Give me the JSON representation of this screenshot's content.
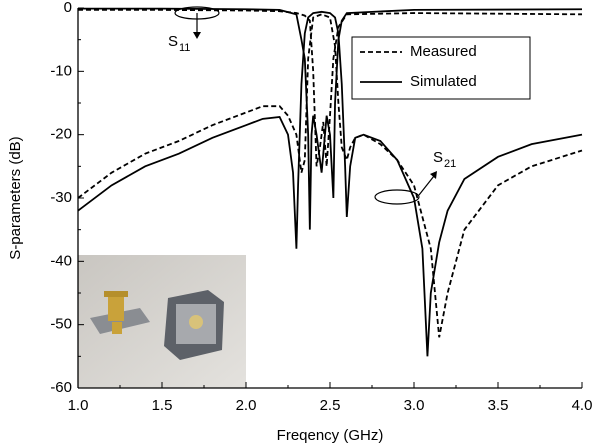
{
  "chart_data": {
    "type": "line",
    "x_label": "Freqency (GHz)",
    "y_label": "S-parameters (dB)",
    "xlim": [
      1.0,
      4.0
    ],
    "ylim": [
      -60,
      0
    ],
    "xticks": [
      {
        "value": 1.0,
        "label": "1.0"
      },
      1.5,
      {
        "value": 2.0,
        "label": "2.0"
      },
      2.5,
      {
        "value": 3.0,
        "label": "3.0"
      },
      3.5,
      {
        "value": 4.0,
        "label": "4.0"
      }
    ],
    "yticks": [
      0,
      -10,
      -20,
      -30,
      -40,
      -50,
      -60
    ],
    "legend": "upper right",
    "series": [
      {
        "name": "Measured",
        "color": "#000000",
        "dash": "dashed",
        "curves": [
          {
            "x": [
              1.0,
              1.5,
              2.0,
              2.2,
              2.3,
              2.35,
              2.38,
              2.4,
              2.42,
              2.44,
              2.46,
              2.48,
              2.5,
              2.52,
              2.55,
              2.6,
              3.0,
              4.0
            ],
            "values": [
              -0.3,
              -0.3,
              -0.4,
              -0.5,
              -0.8,
              -1.2,
              -2,
              -10,
              -25,
              -22,
              -18,
              -25,
              -17,
              -8,
              -3,
              -1,
              -0.8,
              -1
            ]
          },
          {
            "x": [
              1.0,
              1.2,
              1.4,
              1.6,
              1.8,
              2.0,
              2.1,
              2.2,
              2.25,
              2.3,
              2.33,
              2.35,
              2.37,
              2.4,
              2.45,
              2.5,
              2.53,
              2.55,
              2.57,
              2.6,
              2.62,
              2.65,
              2.7,
              2.8,
              2.9,
              3.0,
              3.1,
              3.15,
              3.2,
              3.3,
              3.5,
              3.7,
              4.0
            ],
            "values": [
              -30,
              -26,
              -23,
              -21,
              -18.5,
              -16.5,
              -15.5,
              -15.5,
              -17,
              -20,
              -26,
              -24,
              -8,
              -1.5,
              -1,
              -1.5,
              -6,
              -15,
              -22,
              -24,
              -22,
              -20.5,
              -20,
              -21.5,
              -24,
              -28,
              -38,
              -52,
              -45,
              -35,
              -28,
              -25,
              -22.5
            ]
          }
        ]
      },
      {
        "name": "Simulated",
        "color": "#000000",
        "dash": "solid",
        "curves": [
          {
            "x": [
              1.0,
              1.5,
              2.0,
              2.2,
              2.3,
              2.33,
              2.35,
              2.37,
              2.38,
              2.39,
              2.4,
              2.42,
              2.45,
              2.47,
              2.48,
              2.5,
              2.52,
              2.53,
              2.55,
              2.57,
              2.6,
              3.0,
              4.0
            ],
            "values": [
              -0.1,
              -0.1,
              -0.2,
              -0.3,
              -1,
              -5,
              -8,
              -20,
              -35,
              -20,
              -17,
              -20,
              -26,
              -20,
              -17,
              -20,
              -30,
              -15,
              -5,
              -2,
              -0.8,
              -0.3,
              -0.2
            ]
          },
          {
            "x": [
              1.0,
              1.2,
              1.4,
              1.6,
              1.8,
              2.0,
              2.1,
              2.2,
              2.25,
              2.28,
              2.3,
              2.31,
              2.33,
              2.35,
              2.37,
              2.4,
              2.45,
              2.5,
              2.53,
              2.55,
              2.57,
              2.59,
              2.6,
              2.62,
              2.65,
              2.7,
              2.8,
              2.9,
              3.0,
              3.05,
              3.08,
              3.1,
              3.15,
              3.2,
              3.3,
              3.5,
              3.7,
              4.0
            ],
            "values": [
              -32,
              -28,
              -25,
              -23,
              -20.5,
              -18.5,
              -17.5,
              -17.2,
              -20,
              -26,
              -38,
              -28,
              -12,
              -4,
              -1.5,
              -0.8,
              -0.6,
              -0.8,
              -1.5,
              -4,
              -12,
              -25,
              -33,
              -25,
              -20.5,
              -20,
              -21,
              -24,
              -30,
              -38,
              -55,
              -45,
              -37,
              -32,
              -27,
              -23.5,
              -21.5,
              -20
            ]
          }
        ]
      }
    ],
    "annotations": [
      {
        "text": "S",
        "sub": "11"
      },
      {
        "text": "S",
        "sub": "21"
      }
    ]
  }
}
